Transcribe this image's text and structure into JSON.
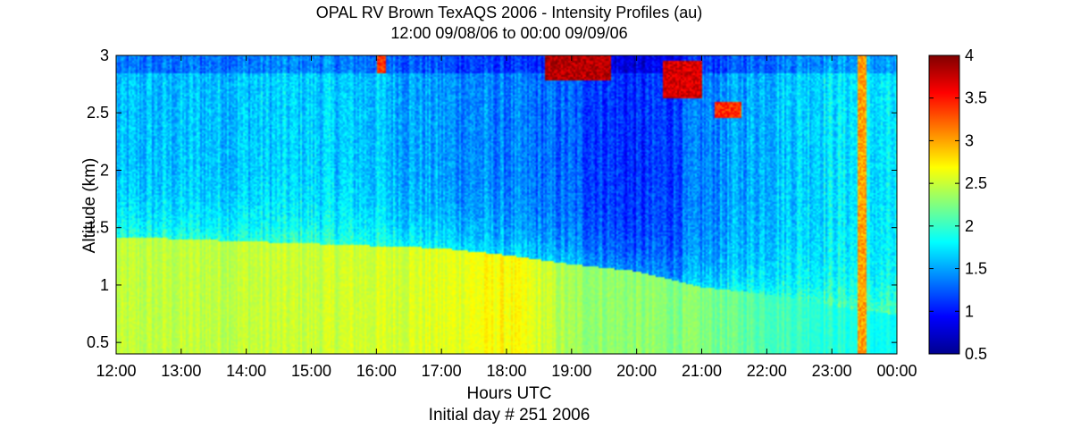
{
  "chart_data": {
    "type": "heatmap",
    "title": "OPAL RV Brown TexAQS 2006 - Intensity Profiles (au)",
    "subtitle": "12:00 09/08/06 to 00:00 09/09/06",
    "xlabel": "Hours UTC",
    "xlabel2": "Initial day # 251  2006",
    "ylabel": "Altitude (km)",
    "x_ticks": [
      "12:00",
      "13:00",
      "14:00",
      "15:00",
      "16:00",
      "17:00",
      "18:00",
      "19:00",
      "20:00",
      "21:00",
      "22:00",
      "23:00",
      "00:00"
    ],
    "xlim_hours": [
      12,
      24
    ],
    "y_ticks": [
      "0.5",
      "1",
      "1.5",
      "2",
      "2.5",
      "3"
    ],
    "y_tick_values": [
      0.5,
      1,
      1.5,
      2,
      2.5,
      3
    ],
    "ylim": [
      0.4,
      3.0
    ],
    "colorbar": {
      "ticks": [
        "0.5",
        "1",
        "1.5",
        "2",
        "2.5",
        "3",
        "3.5",
        "4"
      ],
      "tick_values": [
        0.5,
        1,
        1.5,
        2,
        2.5,
        3,
        3.5,
        4
      ],
      "range": [
        0.5,
        4
      ],
      "colormap": "jet"
    },
    "fields": {
      "boundary_layer_top_km": [
        [
          12,
          1.42
        ],
        [
          13,
          1.4
        ],
        [
          14,
          1.38
        ],
        [
          15,
          1.36
        ],
        [
          16,
          1.34
        ],
        [
          17,
          1.32
        ],
        [
          18,
          1.26
        ],
        [
          18.5,
          1.22
        ],
        [
          19,
          1.18
        ],
        [
          20,
          1.12
        ],
        [
          21,
          0.98
        ],
        [
          22,
          0.92
        ],
        [
          23,
          0.82
        ],
        [
          24,
          0.74
        ]
      ],
      "boundary_layer_intensity": [
        [
          12,
          2.45
        ],
        [
          15,
          2.5
        ],
        [
          17,
          2.58
        ],
        [
          18,
          2.7
        ],
        [
          18.5,
          2.55
        ],
        [
          19,
          2.35
        ],
        [
          20,
          2.3
        ],
        [
          21,
          2.25
        ],
        [
          22,
          2.1
        ],
        [
          23,
          1.95
        ],
        [
          24,
          1.8
        ]
      ],
      "free_troposphere_intensity": [
        [
          12,
          1.55
        ],
        [
          15,
          1.65
        ],
        [
          16,
          1.6
        ],
        [
          17,
          1.45
        ],
        [
          18,
          1.35
        ],
        [
          19,
          1.25
        ],
        [
          20,
          1.05
        ],
        [
          20.5,
          1.15
        ],
        [
          21,
          1.35
        ],
        [
          22,
          1.6
        ],
        [
          23,
          1.75
        ],
        [
          24,
          1.7
        ]
      ],
      "cloud_features": [
        {
          "hours": [
            18.6,
            19.6
          ],
          "top_km": 3.0,
          "bottom_km": 2.78,
          "value": 4.0
        },
        {
          "hours": [
            20.4,
            21.0
          ],
          "top_km": 2.95,
          "bottom_km": 2.62,
          "value": 3.9
        },
        {
          "hours": [
            21.2,
            21.6
          ],
          "top_km": 2.6,
          "bottom_km": 2.45,
          "value": 3.6
        },
        {
          "hours": [
            23.4,
            23.52
          ],
          "top_km": 3.0,
          "bottom_km": 0.4,
          "value": 3.2
        },
        {
          "hours": [
            16.0,
            16.15
          ],
          "top_km": 3.0,
          "bottom_km": 2.85,
          "value": 3.6
        }
      ]
    }
  }
}
